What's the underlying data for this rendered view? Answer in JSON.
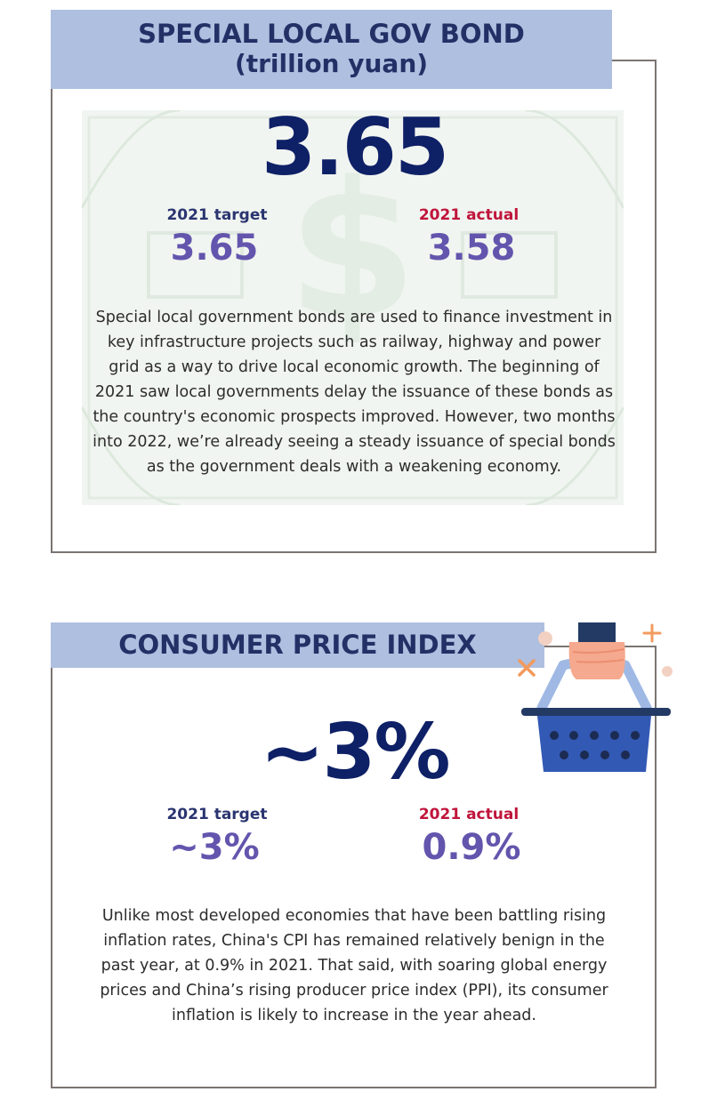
{
  "sections": [
    {
      "title_line1": "SPECIAL LOCAL GOV BOND",
      "title_line2": "(trillion yuan)",
      "headline_value": "3.65",
      "target_label": "2021 target",
      "target_value": "3.65",
      "actual_label": "2021 actual",
      "actual_value": "3.58",
      "paragraph": "Special local government bonds are used to finance investment in key infrastructure projects such as railway, highway and power grid as a way to drive local economic growth. The beginning of 2021 saw local governments delay the issuance of these bonds as the country's economic prospects improved. However, two months into 2022, we’re already seeing a steady issuance of special bonds as the government deals with a weakening economy.",
      "background_icon": "dollar-bill-icon"
    },
    {
      "title_line1": "CONSUMER PRICE INDEX",
      "headline_value": "~3%",
      "target_label": "2021 target",
      "target_value": "~3%",
      "actual_label": "2021 actual",
      "actual_value": "0.9%",
      "paragraph": "Unlike most developed economies that have been battling rising inflation rates, China's CPI has remained relatively benign in the past year, at 0.9% in 2021. That said, with soaring global energy prices and China’s rising producer price index (PPI), its consumer inflation is likely to increase in the year ahead.",
      "illustration_icon": "shopping-basket-icon"
    }
  ],
  "colors": {
    "header_bg": "#aebfe0",
    "header_text": "#233066",
    "headline": "#0e2066",
    "target_label": "#2a3470",
    "actual_label": "#c0153b",
    "values": "#6355ad",
    "frame": "#7b7471"
  }
}
